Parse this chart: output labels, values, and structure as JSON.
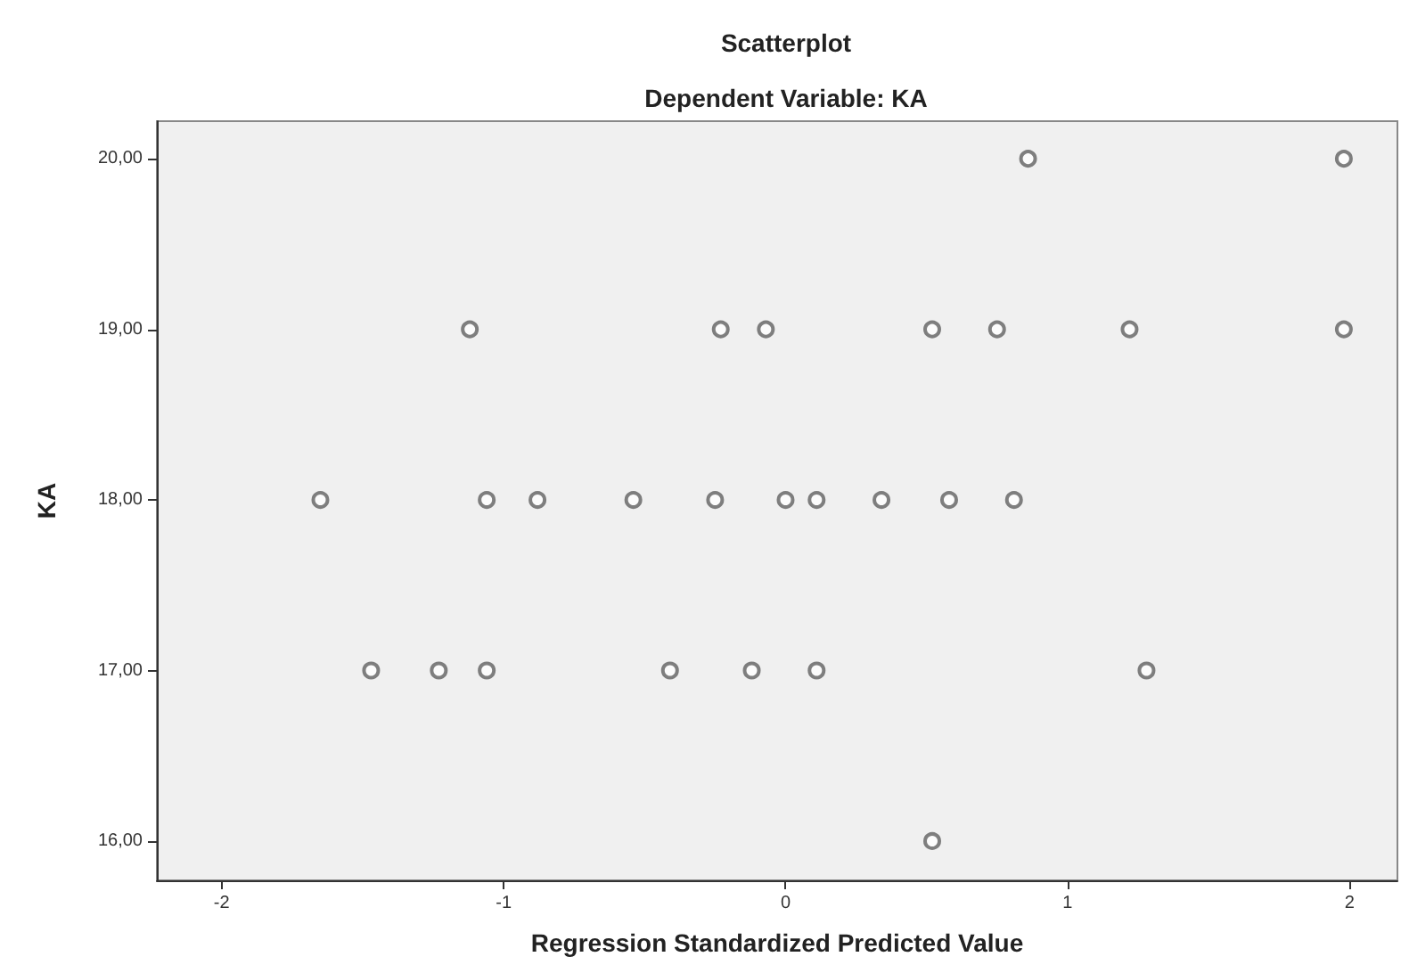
{
  "chart_data": {
    "type": "scatter",
    "title": "Scatterplot",
    "subtitle": "Dependent Variable: KA",
    "xlabel": "Regression Standardized Predicted Value",
    "ylabel": "KA",
    "x": [
      0.86,
      1.98,
      -1.12,
      -0.23,
      -0.07,
      0.52,
      0.75,
      1.22,
      1.98,
      -1.65,
      -1.06,
      -0.88,
      -0.54,
      -0.25,
      0.0,
      0.11,
      0.34,
      0.58,
      0.81,
      -1.47,
      -1.23,
      -1.06,
      -0.41,
      -0.12,
      0.11,
      1.28,
      0.52
    ],
    "values": [
      20,
      20,
      19,
      19,
      19,
      19,
      19,
      19,
      19,
      18,
      18,
      18,
      18,
      18,
      18,
      18,
      18,
      18,
      18,
      17,
      17,
      17,
      17,
      17,
      17,
      17,
      16
    ],
    "color": "#606060",
    "marker": "circle",
    "grid": false,
    "xlim": [
      -2.23,
      2.17
    ],
    "xticks": [
      -2,
      -1,
      0,
      1,
      2
    ],
    "ylim": [
      15.77,
      20.22
    ],
    "yticks": [
      {
        "value": 16,
        "label": "16,00"
      },
      {
        "value": 17,
        "label": "17,00"
      },
      {
        "value": 18,
        "label": "18,00"
      },
      {
        "value": 19,
        "label": "19,00"
      },
      {
        "value": 20,
        "label": "20,00"
      }
    ]
  }
}
